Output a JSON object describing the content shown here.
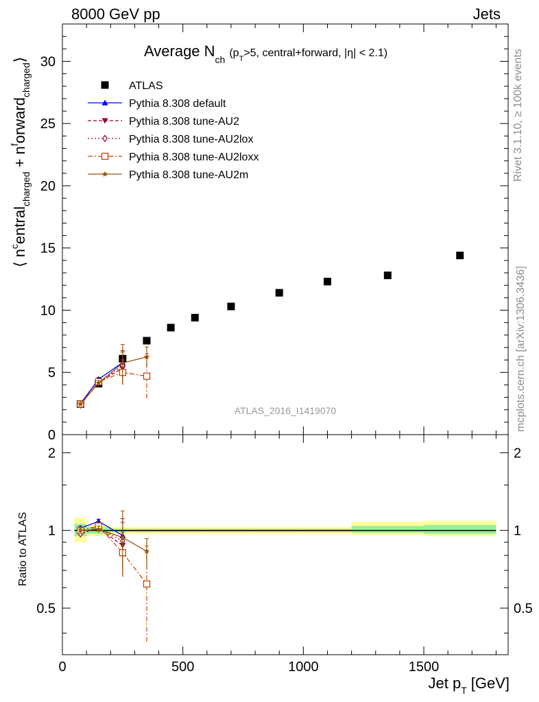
{
  "header": {
    "left": "8000 GeV pp",
    "right": "Jets"
  },
  "title": {
    "main": "Average N",
    "main_sub": "ch",
    "cond_open": "(p",
    "cond_sub": "T",
    "cond_rest": ">5, central+forward, |η| < 2.1)"
  },
  "side_labels": {
    "rivet": "Rivet 3.1.10, ≥ 100k events",
    "mcplots": "mcplots.cern.ch [arXiv:1306.3436]"
  },
  "watermark": "ATLAS_2016_I1419070",
  "axes": {
    "ylabel_main": "⟨ n^{c}entral_{charged} + n^{f}orward_{charged} ⟩",
    "ylabel_ratio": "Ratio to ATLAS",
    "xlabel": "Jet p",
    "xlabel_sub": "T",
    "xlabel_unit": "[GeV]"
  },
  "legend": [
    {
      "label": "ATLAS",
      "color": "#000000",
      "marker": "square-filled",
      "line": "none"
    },
    {
      "label": "Pythia 8.308 default",
      "color": "#0000ff",
      "marker": "triangle-up-filled",
      "line": "solid"
    },
    {
      "label": "Pythia 8.308 tune-AU2",
      "color": "#990033",
      "marker": "triangle-down-filled",
      "line": "dashed"
    },
    {
      "label": "Pythia 8.308 tune-AU2lox",
      "color": "#990033",
      "marker": "diamond-open",
      "line": "dotted"
    },
    {
      "label": "Pythia 8.308 tune-AU2loxx",
      "color": "#cc4400",
      "marker": "square-open",
      "line": "dashdot"
    },
    {
      "label": "Pythia 8.308 tune-AU2m",
      "color": "#995500",
      "marker": "star",
      "line": "solid"
    }
  ],
  "chart_data": [
    {
      "type": "scatter",
      "panel": "main",
      "xlim": [
        0,
        1850
      ],
      "ylim": [
        0,
        33
      ],
      "xticks": [
        0,
        500,
        1000,
        1500
      ],
      "yticks": [
        0,
        5,
        10,
        15,
        20,
        25,
        30
      ],
      "ytick_labels": [
        "0",
        "5",
        "10",
        "15",
        "20",
        "25",
        "30"
      ],
      "series": [
        {
          "name": "ATLAS",
          "x": [
            75,
            150,
            250,
            350,
            450,
            550,
            700,
            900,
            1100,
            1350,
            1650
          ],
          "y": [
            2.45,
            4.1,
            6.1,
            7.55,
            8.6,
            9.4,
            10.3,
            11.4,
            12.3,
            12.8,
            14.4
          ]
        },
        {
          "name": "Pythia 8.308 default",
          "x": [
            75,
            150,
            250
          ],
          "y": [
            2.5,
            4.45,
            5.8
          ],
          "yerr": [
            0.1,
            0.15,
            0.25
          ]
        },
        {
          "name": "Pythia 8.308 tune-AU2",
          "x": [
            75,
            150,
            250
          ],
          "y": [
            2.42,
            4.2,
            5.35
          ],
          "yerr": [
            0.1,
            0.2,
            1.3
          ]
        },
        {
          "name": "Pythia 8.308 tune-AU2lox",
          "x": [
            75,
            150,
            250
          ],
          "y": [
            2.38,
            4.2,
            5.55
          ],
          "yerr": [
            0.1,
            0.2,
            1.2
          ]
        },
        {
          "name": "Pythia 8.308 tune-AU2loxx",
          "x": [
            75,
            150,
            250,
            350
          ],
          "y": [
            2.45,
            4.25,
            5.0,
            4.7
          ],
          "yerr": [
            0.1,
            0.2,
            1.0,
            1.8
          ]
        },
        {
          "name": "Pythia 8.308 tune-AU2m",
          "x": [
            75,
            150,
            250,
            350
          ],
          "y": [
            2.45,
            4.15,
            5.75,
            6.25
          ],
          "yerr": [
            0.1,
            0.2,
            1.5,
            0.8
          ]
        }
      ]
    },
    {
      "type": "scatter",
      "panel": "ratio",
      "xlim": [
        0,
        1850
      ],
      "ylim": [
        0.33,
        2.35
      ],
      "xticks": [
        0,
        500,
        1000,
        1500
      ],
      "xtick_labels": [
        "0",
        "500",
        "1000",
        "1500"
      ],
      "yticks": [
        0.5,
        1,
        2
      ],
      "ytick_labels": [
        "0.5",
        "1",
        "2"
      ],
      "reference_line": 1,
      "bands": [
        {
          "x0": 50,
          "x1": 100,
          "inner": [
            0.95,
            1.06
          ],
          "outer": [
            0.9,
            1.12
          ]
        },
        {
          "x0": 100,
          "x1": 200,
          "inner": [
            0.97,
            1.03
          ],
          "outer": [
            0.95,
            1.05
          ]
        },
        {
          "x0": 200,
          "x1": 300,
          "inner": [
            0.985,
            1.015
          ],
          "outer": [
            0.97,
            1.03
          ]
        },
        {
          "x0": 300,
          "x1": 400,
          "inner": [
            0.985,
            1.015
          ],
          "outer": [
            0.97,
            1.03
          ]
        },
        {
          "x0": 400,
          "x1": 600,
          "inner": [
            0.985,
            1.015
          ],
          "outer": [
            0.97,
            1.03
          ]
        },
        {
          "x0": 600,
          "x1": 800,
          "inner": [
            0.985,
            1.015
          ],
          "outer": [
            0.97,
            1.03
          ]
        },
        {
          "x0": 800,
          "x1": 1000,
          "inner": [
            0.985,
            1.015
          ],
          "outer": [
            0.97,
            1.03
          ]
        },
        {
          "x0": 1000,
          "x1": 1200,
          "inner": [
            0.985,
            1.015
          ],
          "outer": [
            0.97,
            1.03
          ]
        },
        {
          "x0": 1200,
          "x1": 1500,
          "inner": [
            0.98,
            1.04
          ],
          "outer": [
            0.96,
            1.08
          ]
        },
        {
          "x0": 1500,
          "x1": 1800,
          "inner": [
            0.97,
            1.05
          ],
          "outer": [
            0.95,
            1.09
          ]
        }
      ],
      "series": [
        {
          "name": "Pythia 8.308 default",
          "x": [
            75,
            150,
            250
          ],
          "y": [
            1.02,
            1.085,
            0.955
          ],
          "yerr": [
            0.02,
            0.02,
            0.04
          ]
        },
        {
          "name": "Pythia 8.308 tune-AU2",
          "x": [
            75,
            150,
            250
          ],
          "y": [
            0.99,
            1.02,
            0.875
          ],
          "yerr": [
            0.02,
            0.03,
            0.2
          ]
        },
        {
          "name": "Pythia 8.308 tune-AU2lox",
          "x": [
            75,
            150,
            250
          ],
          "y": [
            0.97,
            1.02,
            0.91
          ],
          "yerr": [
            0.02,
            0.03,
            0.2
          ]
        },
        {
          "name": "Pythia 8.308 tune-AU2loxx",
          "x": [
            75,
            150,
            250,
            350
          ],
          "y": [
            1.0,
            1.04,
            0.82,
            0.62
          ],
          "yerr": [
            0.02,
            0.03,
            0.16,
            0.25
          ]
        },
        {
          "name": "Pythia 8.308 tune-AU2m",
          "x": [
            75,
            150,
            250,
            350
          ],
          "y": [
            1.0,
            1.01,
            0.94,
            0.83
          ],
          "yerr": [
            0.02,
            0.03,
            0.25,
            0.1
          ]
        }
      ]
    }
  ]
}
